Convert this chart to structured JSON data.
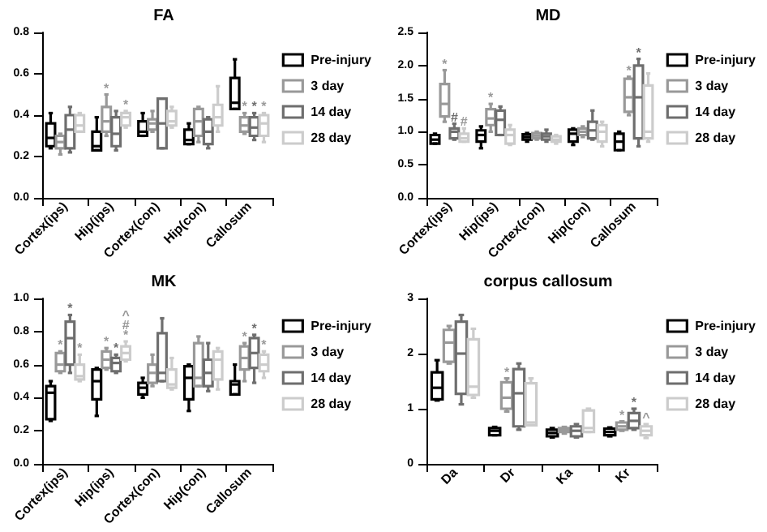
{
  "chart_data": [
    {
      "type": "box",
      "title": "FA",
      "categories": [
        "Cortex(ips)",
        "Hip(ips)",
        "Cortex(con)",
        "Hip(con)",
        "Callosum"
      ],
      "ylim": [
        0,
        0.8
      ],
      "yticks": [
        {
          "value": 0,
          "label": "0.0"
        },
        {
          "value": 0.2,
          "label": "0.2"
        },
        {
          "value": 0.4,
          "label": "0.4"
        },
        {
          "value": 0.6,
          "label": "0.6"
        },
        {
          "value": 0.8,
          "label": "0.8"
        }
      ],
      "legend": "top right",
      "series": [
        {
          "name": "Pre-injury",
          "color": "#000000",
          "boxes": [
            {
              "low": 0.24,
              "q1": 0.25,
              "median": 0.29,
              "q3": 0.36,
              "high": 0.41
            },
            {
              "low": 0.23,
              "q1": 0.23,
              "median": 0.25,
              "q3": 0.32,
              "high": 0.39
            },
            {
              "low": 0.3,
              "q1": 0.3,
              "median": 0.32,
              "q3": 0.37,
              "high": 0.41
            },
            {
              "low": 0.26,
              "q1": 0.26,
              "median": 0.28,
              "q3": 0.33,
              "high": 0.36
            },
            {
              "low": 0.43,
              "q1": 0.43,
              "median": 0.46,
              "q3": 0.58,
              "high": 0.67
            }
          ],
          "value_labels": [
            null,
            null,
            null,
            null,
            null
          ]
        },
        {
          "name": "3 day",
          "color": "#999999",
          "boxes": [
            {
              "low": 0.21,
              "q1": 0.24,
              "median": 0.27,
              "q3": 0.3,
              "high": 0.31
            },
            {
              "low": 0.3,
              "q1": 0.32,
              "median": 0.37,
              "q3": 0.44,
              "high": 0.5
            },
            {
              "low": 0.32,
              "q1": 0.33,
              "median": 0.36,
              "q3": 0.38,
              "high": 0.42
            },
            {
              "low": 0.27,
              "q1": 0.3,
              "median": 0.37,
              "q3": 0.43,
              "high": 0.44
            },
            {
              "low": 0.31,
              "q1": 0.32,
              "median": 0.35,
              "q3": 0.39,
              "high": 0.41
            }
          ],
          "value_labels": [
            null,
            "*",
            null,
            null,
            "*"
          ]
        },
        {
          "name": "14 day",
          "color": "#6e6e6e",
          "boxes": [
            {
              "low": 0.22,
              "q1": 0.24,
              "median": 0.33,
              "q3": 0.4,
              "high": 0.44
            },
            {
              "low": 0.23,
              "q1": 0.25,
              "median": 0.31,
              "q3": 0.39,
              "high": 0.42
            },
            {
              "low": 0.24,
              "q1": 0.24,
              "median": 0.36,
              "q3": 0.48,
              "high": 0.48
            },
            {
              "low": 0.24,
              "q1": 0.26,
              "median": 0.32,
              "q3": 0.38,
              "high": 0.39
            },
            {
              "low": 0.28,
              "q1": 0.3,
              "median": 0.34,
              "q3": 0.39,
              "high": 0.41
            }
          ],
          "value_labels": [
            null,
            null,
            null,
            null,
            "*"
          ]
        },
        {
          "name": "28 day",
          "color": "#cccccc",
          "boxes": [
            {
              "low": 0.32,
              "q1": 0.32,
              "median": 0.35,
              "q3": 0.4,
              "high": 0.41
            },
            {
              "low": 0.34,
              "q1": 0.35,
              "median": 0.39,
              "q3": 0.41,
              "high": 0.42
            },
            {
              "low": 0.34,
              "q1": 0.35,
              "median": 0.37,
              "q3": 0.42,
              "high": 0.44
            },
            {
              "low": 0.32,
              "q1": 0.35,
              "median": 0.39,
              "q3": 0.45,
              "high": 0.54
            },
            {
              "low": 0.27,
              "q1": 0.3,
              "median": 0.36,
              "q3": 0.4,
              "high": 0.41
            }
          ],
          "value_labels": [
            null,
            "*",
            null,
            null,
            "*"
          ]
        }
      ]
    },
    {
      "type": "box",
      "title": "MD",
      "categories": [
        "Cortex(ips)",
        "Hip(ips)",
        "Cortex(con)",
        "Hip(con)",
        "Callosum"
      ],
      "ylim": [
        0,
        2.5
      ],
      "yticks": [
        {
          "value": 0,
          "label": "0.0"
        },
        {
          "value": 0.5,
          "label": "0.5"
        },
        {
          "value": 1,
          "label": "1.0"
        },
        {
          "value": 1.5,
          "label": "1.5"
        },
        {
          "value": 2,
          "label": "2.0"
        },
        {
          "value": 2.5,
          "label": "2.5"
        }
      ],
      "legend": "top right",
      "series": [
        {
          "name": "Pre-injury",
          "color": "#000000",
          "boxes": [
            {
              "low": 0.82,
              "q1": 0.82,
              "median": 0.88,
              "q3": 0.95,
              "high": 0.97
            },
            {
              "low": 0.75,
              "q1": 0.85,
              "median": 0.95,
              "q3": 1.02,
              "high": 1.08
            },
            {
              "low": 0.85,
              "q1": 0.88,
              "median": 0.92,
              "q3": 0.96,
              "high": 0.98
            },
            {
              "low": 0.8,
              "q1": 0.85,
              "median": 0.97,
              "q3": 1.03,
              "high": 1.05
            },
            {
              "low": 0.72,
              "q1": 0.72,
              "median": 0.85,
              "q3": 0.97,
              "high": 1.0
            }
          ],
          "value_labels": [
            null,
            null,
            null,
            null,
            null
          ]
        },
        {
          "name": "3 day",
          "color": "#999999",
          "boxes": [
            {
              "low": 1.15,
              "q1": 1.23,
              "median": 1.42,
              "q3": 1.72,
              "high": 1.93
            },
            {
              "low": 1.0,
              "q1": 1.1,
              "median": 1.2,
              "q3": 1.34,
              "high": 1.42
            },
            {
              "low": 0.88,
              "q1": 0.9,
              "median": 0.94,
              "q3": 0.98,
              "high": 1.0
            },
            {
              "low": 0.92,
              "q1": 0.95,
              "median": 1.0,
              "q3": 1.05,
              "high": 1.08
            },
            {
              "low": 1.25,
              "q1": 1.3,
              "median": 1.52,
              "q3": 1.8,
              "high": 1.83
            }
          ],
          "value_labels": [
            "*",
            "*",
            null,
            null,
            "*"
          ]
        },
        {
          "name": "14 day",
          "color": "#6e6e6e",
          "boxes": [
            {
              "low": 0.88,
              "q1": 0.9,
              "median": 1.0,
              "q3": 1.05,
              "high": 1.12
            },
            {
              "low": 0.95,
              "q1": 0.95,
              "median": 1.18,
              "q3": 1.32,
              "high": 1.38
            },
            {
              "low": 0.85,
              "q1": 0.88,
              "median": 0.93,
              "q3": 0.97,
              "high": 1.03
            },
            {
              "low": 0.88,
              "q1": 0.9,
              "median": 1.02,
              "q3": 1.15,
              "high": 1.32
            },
            {
              "low": 0.78,
              "q1": 0.9,
              "median": 1.52,
              "q3": 2.0,
              "high": 2.1
            }
          ],
          "value_labels": [
            "#",
            null,
            null,
            null,
            "*"
          ]
        },
        {
          "name": "28 day",
          "color": "#cccccc",
          "boxes": [
            {
              "low": 0.85,
              "q1": 0.85,
              "median": 0.9,
              "q3": 0.97,
              "high": 1.05
            },
            {
              "low": 0.8,
              "q1": 0.82,
              "median": 0.95,
              "q3": 1.03,
              "high": 1.1
            },
            {
              "low": 0.82,
              "q1": 0.85,
              "median": 0.88,
              "q3": 0.93,
              "high": 0.95
            },
            {
              "low": 0.78,
              "q1": 0.85,
              "median": 1.0,
              "q3": 1.1,
              "high": 1.15
            },
            {
              "low": 0.85,
              "q1": 0.9,
              "median": 1.0,
              "q3": 1.7,
              "high": 1.88
            }
          ],
          "value_labels": [
            "#",
            null,
            null,
            null,
            null
          ]
        }
      ]
    },
    {
      "type": "box",
      "title": "MK",
      "categories": [
        "Cortex(ips)",
        "Hip(ips)",
        "Cortex(con)",
        "Hip(con)",
        "Callosum"
      ],
      "ylim": [
        0,
        1
      ],
      "yticks": [
        {
          "value": 0,
          "label": "0.0"
        },
        {
          "value": 0.2,
          "label": "0.2"
        },
        {
          "value": 0.4,
          "label": "0.4"
        },
        {
          "value": 0.6,
          "label": "0.6"
        },
        {
          "value": 0.8,
          "label": "0.8"
        },
        {
          "value": 1,
          "label": "1.0"
        }
      ],
      "legend": "top right",
      "series": [
        {
          "name": "Pre-injury",
          "color": "#000000",
          "boxes": [
            {
              "low": 0.26,
              "q1": 0.27,
              "median": 0.43,
              "q3": 0.47,
              "high": 0.5
            },
            {
              "low": 0.29,
              "q1": 0.39,
              "median": 0.5,
              "q3": 0.57,
              "high": 0.58
            },
            {
              "low": 0.4,
              "q1": 0.42,
              "median": 0.46,
              "q3": 0.49,
              "high": 0.52
            },
            {
              "low": 0.32,
              "q1": 0.39,
              "median": 0.52,
              "q3": 0.59,
              "high": 0.6
            },
            {
              "low": 0.42,
              "q1": 0.42,
              "median": 0.48,
              "q3": 0.5,
              "high": 0.6
            }
          ],
          "value_labels": [
            null,
            null,
            null,
            null,
            null
          ]
        },
        {
          "name": "3 day",
          "color": "#999999",
          "boxes": [
            {
              "low": 0.55,
              "q1": 0.56,
              "median": 0.6,
              "q3": 0.67,
              "high": 0.68
            },
            {
              "low": 0.57,
              "q1": 0.58,
              "median": 0.63,
              "q3": 0.68,
              "high": 0.7
            },
            {
              "low": 0.47,
              "q1": 0.49,
              "median": 0.55,
              "q3": 0.6,
              "high": 0.66
            },
            {
              "low": 0.47,
              "q1": 0.47,
              "median": 0.52,
              "q3": 0.73,
              "high": 0.77
            },
            {
              "low": 0.5,
              "q1": 0.57,
              "median": 0.64,
              "q3": 0.71,
              "high": 0.73
            }
          ],
          "value_labels": [
            "*",
            "*",
            null,
            null,
            "*"
          ]
        },
        {
          "name": "14 day",
          "color": "#6e6e6e",
          "boxes": [
            {
              "low": 0.55,
              "q1": 0.6,
              "median": 0.76,
              "q3": 0.86,
              "high": 0.9
            },
            {
              "low": 0.55,
              "q1": 0.56,
              "median": 0.61,
              "q3": 0.64,
              "high": 0.66
            },
            {
              "low": 0.5,
              "q1": 0.5,
              "median": 0.55,
              "q3": 0.79,
              "high": 0.88
            },
            {
              "low": 0.44,
              "q1": 0.47,
              "median": 0.55,
              "q3": 0.63,
              "high": 0.73
            },
            {
              "low": 0.49,
              "q1": 0.58,
              "median": 0.67,
              "q3": 0.76,
              "high": 0.78
            }
          ],
          "value_labels": [
            "*",
            "*",
            null,
            null,
            "*"
          ]
        },
        {
          "name": "28 day",
          "color": "#cccccc",
          "boxes": [
            {
              "low": 0.5,
              "q1": 0.51,
              "median": 0.53,
              "q3": 0.6,
              "high": 0.66
            },
            {
              "low": 0.62,
              "q1": 0.63,
              "median": 0.67,
              "q3": 0.71,
              "high": 0.74
            },
            {
              "low": 0.45,
              "q1": 0.46,
              "median": 0.48,
              "q3": 0.57,
              "high": 0.64
            },
            {
              "low": 0.45,
              "q1": 0.51,
              "median": 0.63,
              "q3": 0.68,
              "high": 0.7
            },
            {
              "low": 0.52,
              "q1": 0.56,
              "median": 0.6,
              "q3": 0.66,
              "high": 0.68
            }
          ],
          "value_labels": [
            "*",
            "^\n#\n*",
            null,
            null,
            "*"
          ]
        }
      ]
    },
    {
      "type": "box",
      "title": "corpus callosum",
      "categories": [
        "Da",
        "Dr",
        "Ka",
        "Kr"
      ],
      "ylim": [
        0,
        3
      ],
      "yticks": [
        0,
        1,
        2,
        3
      ],
      "legend": "top right",
      "series": [
        {
          "name": "Pre-injury",
          "color": "#000000",
          "boxes": [
            {
              "low": 1.15,
              "q1": 1.17,
              "median": 1.38,
              "q3": 1.66,
              "high": 1.88
            },
            {
              "low": 0.52,
              "q1": 0.52,
              "median": 0.6,
              "q3": 0.65,
              "high": 0.67
            },
            {
              "low": 0.48,
              "q1": 0.5,
              "median": 0.56,
              "q3": 0.62,
              "high": 0.65
            },
            {
              "low": 0.5,
              "q1": 0.52,
              "median": 0.58,
              "q3": 0.64,
              "high": 0.66
            }
          ],
          "value_labels": [
            null,
            null,
            null,
            null
          ]
        },
        {
          "name": "3 day",
          "color": "#999999",
          "boxes": [
            {
              "low": 1.82,
              "q1": 1.85,
              "median": 2.2,
              "q3": 2.43,
              "high": 2.5
            },
            {
              "low": 0.95,
              "q1": 1.0,
              "median": 1.2,
              "q3": 1.48,
              "high": 1.55
            },
            {
              "low": 0.55,
              "q1": 0.58,
              "median": 0.62,
              "q3": 0.65,
              "high": 0.67
            },
            {
              "low": 0.6,
              "q1": 0.62,
              "median": 0.68,
              "q3": 0.75,
              "high": 0.77
            }
          ],
          "value_labels": [
            null,
            "*",
            null,
            "*"
          ]
        },
        {
          "name": "14 day",
          "color": "#6e6e6e",
          "boxes": [
            {
              "low": 1.08,
              "q1": 1.27,
              "median": 2.0,
              "q3": 2.58,
              "high": 2.7
            },
            {
              "low": 0.62,
              "q1": 0.68,
              "median": 1.28,
              "q3": 1.72,
              "high": 1.82
            },
            {
              "low": 0.48,
              "q1": 0.5,
              "median": 0.6,
              "q3": 0.68,
              "high": 0.72
            },
            {
              "low": 0.62,
              "q1": 0.65,
              "median": 0.78,
              "q3": 0.92,
              "high": 1.0
            }
          ],
          "value_labels": [
            null,
            null,
            null,
            "*"
          ]
        },
        {
          "name": "28 day",
          "color": "#cccccc",
          "boxes": [
            {
              "low": 1.2,
              "q1": 1.25,
              "median": 1.4,
              "q3": 2.26,
              "high": 2.45
            },
            {
              "low": 0.7,
              "q1": 0.7,
              "median": 0.75,
              "q3": 1.46,
              "high": 1.55
            },
            {
              "low": 0.58,
              "q1": 0.58,
              "median": 0.65,
              "q3": 0.97,
              "high": 1.0
            },
            {
              "low": 0.47,
              "q1": 0.52,
              "median": 0.6,
              "q3": 0.68,
              "high": 0.72
            }
          ],
          "value_labels": [
            null,
            null,
            null,
            "^"
          ]
        }
      ]
    }
  ]
}
